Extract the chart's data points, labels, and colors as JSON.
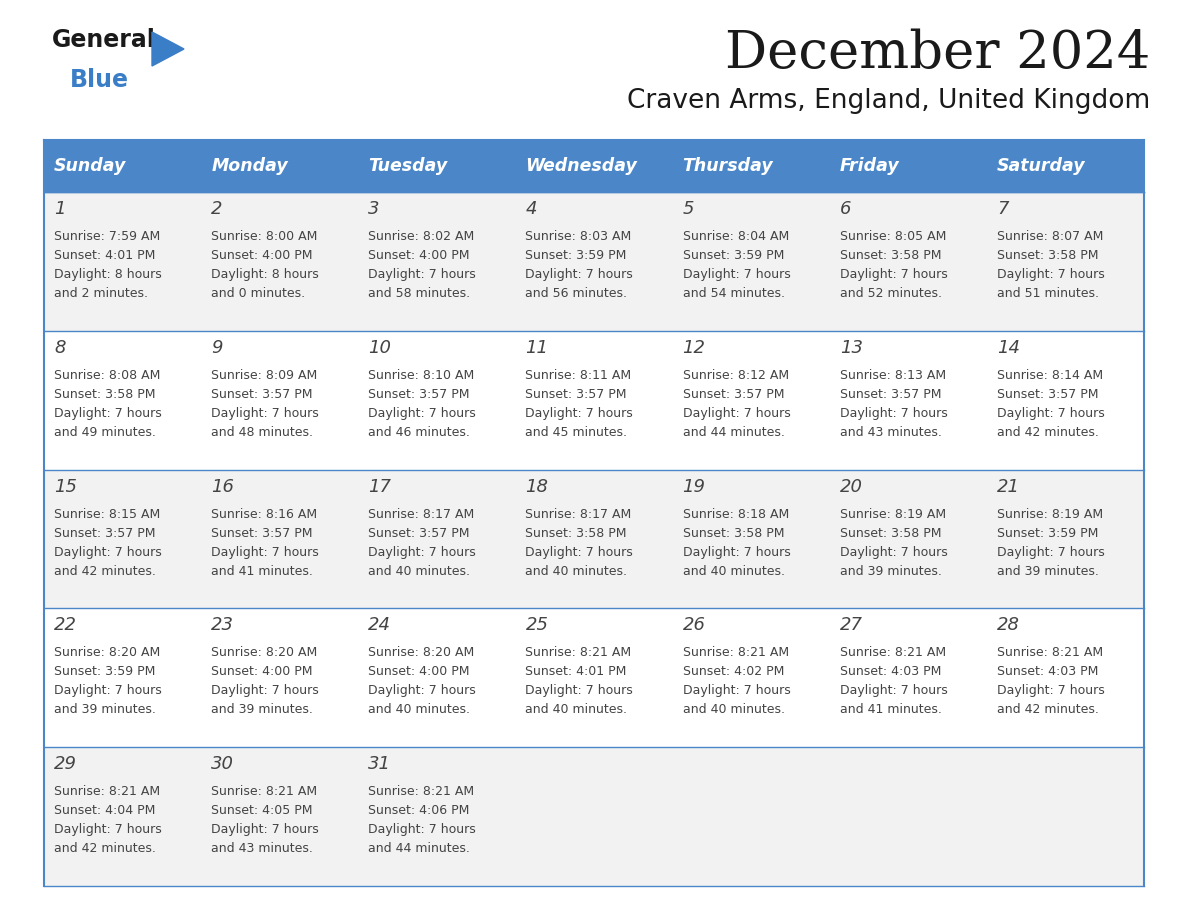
{
  "title": "December 2024",
  "subtitle": "Craven Arms, England, United Kingdom",
  "days_of_week": [
    "Sunday",
    "Monday",
    "Tuesday",
    "Wednesday",
    "Thursday",
    "Friday",
    "Saturday"
  ],
  "header_bg": "#4a86c8",
  "header_text": "#ffffff",
  "row_bg_odd": "#f2f2f2",
  "row_bg_even": "#ffffff",
  "border_color": "#4a86c8",
  "day_num_color": "#444444",
  "cell_text_color": "#444444",
  "title_color": "#1a1a1a",
  "subtitle_color": "#1a1a1a",
  "logo_general_color": "#1a1a1a",
  "logo_blue_color": "#3a7ec8",
  "weeks": [
    [
      {
        "day": 1,
        "sunrise": "7:59 AM",
        "sunset": "4:01 PM",
        "daylight": "8 hours and 2 minutes."
      },
      {
        "day": 2,
        "sunrise": "8:00 AM",
        "sunset": "4:00 PM",
        "daylight": "8 hours and 0 minutes."
      },
      {
        "day": 3,
        "sunrise": "8:02 AM",
        "sunset": "4:00 PM",
        "daylight": "7 hours and 58 minutes."
      },
      {
        "day": 4,
        "sunrise": "8:03 AM",
        "sunset": "3:59 PM",
        "daylight": "7 hours and 56 minutes."
      },
      {
        "day": 5,
        "sunrise": "8:04 AM",
        "sunset": "3:59 PM",
        "daylight": "7 hours and 54 minutes."
      },
      {
        "day": 6,
        "sunrise": "8:05 AM",
        "sunset": "3:58 PM",
        "daylight": "7 hours and 52 minutes."
      },
      {
        "day": 7,
        "sunrise": "8:07 AM",
        "sunset": "3:58 PM",
        "daylight": "7 hours and 51 minutes."
      }
    ],
    [
      {
        "day": 8,
        "sunrise": "8:08 AM",
        "sunset": "3:58 PM",
        "daylight": "7 hours and 49 minutes."
      },
      {
        "day": 9,
        "sunrise": "8:09 AM",
        "sunset": "3:57 PM",
        "daylight": "7 hours and 48 minutes."
      },
      {
        "day": 10,
        "sunrise": "8:10 AM",
        "sunset": "3:57 PM",
        "daylight": "7 hours and 46 minutes."
      },
      {
        "day": 11,
        "sunrise": "8:11 AM",
        "sunset": "3:57 PM",
        "daylight": "7 hours and 45 minutes."
      },
      {
        "day": 12,
        "sunrise": "8:12 AM",
        "sunset": "3:57 PM",
        "daylight": "7 hours and 44 minutes."
      },
      {
        "day": 13,
        "sunrise": "8:13 AM",
        "sunset": "3:57 PM",
        "daylight": "7 hours and 43 minutes."
      },
      {
        "day": 14,
        "sunrise": "8:14 AM",
        "sunset": "3:57 PM",
        "daylight": "7 hours and 42 minutes."
      }
    ],
    [
      {
        "day": 15,
        "sunrise": "8:15 AM",
        "sunset": "3:57 PM",
        "daylight": "7 hours and 42 minutes."
      },
      {
        "day": 16,
        "sunrise": "8:16 AM",
        "sunset": "3:57 PM",
        "daylight": "7 hours and 41 minutes."
      },
      {
        "day": 17,
        "sunrise": "8:17 AM",
        "sunset": "3:57 PM",
        "daylight": "7 hours and 40 minutes."
      },
      {
        "day": 18,
        "sunrise": "8:17 AM",
        "sunset": "3:58 PM",
        "daylight": "7 hours and 40 minutes."
      },
      {
        "day": 19,
        "sunrise": "8:18 AM",
        "sunset": "3:58 PM",
        "daylight": "7 hours and 40 minutes."
      },
      {
        "day": 20,
        "sunrise": "8:19 AM",
        "sunset": "3:58 PM",
        "daylight": "7 hours and 39 minutes."
      },
      {
        "day": 21,
        "sunrise": "8:19 AM",
        "sunset": "3:59 PM",
        "daylight": "7 hours and 39 minutes."
      }
    ],
    [
      {
        "day": 22,
        "sunrise": "8:20 AM",
        "sunset": "3:59 PM",
        "daylight": "7 hours and 39 minutes."
      },
      {
        "day": 23,
        "sunrise": "8:20 AM",
        "sunset": "4:00 PM",
        "daylight": "7 hours and 39 minutes."
      },
      {
        "day": 24,
        "sunrise": "8:20 AM",
        "sunset": "4:00 PM",
        "daylight": "7 hours and 40 minutes."
      },
      {
        "day": 25,
        "sunrise": "8:21 AM",
        "sunset": "4:01 PM",
        "daylight": "7 hours and 40 minutes."
      },
      {
        "day": 26,
        "sunrise": "8:21 AM",
        "sunset": "4:02 PM",
        "daylight": "7 hours and 40 minutes."
      },
      {
        "day": 27,
        "sunrise": "8:21 AM",
        "sunset": "4:03 PM",
        "daylight": "7 hours and 41 minutes."
      },
      {
        "day": 28,
        "sunrise": "8:21 AM",
        "sunset": "4:03 PM",
        "daylight": "7 hours and 42 minutes."
      }
    ],
    [
      {
        "day": 29,
        "sunrise": "8:21 AM",
        "sunset": "4:04 PM",
        "daylight": "7 hours and 42 minutes."
      },
      {
        "day": 30,
        "sunrise": "8:21 AM",
        "sunset": "4:05 PM",
        "daylight": "7 hours and 43 minutes."
      },
      {
        "day": 31,
        "sunrise": "8:21 AM",
        "sunset": "4:06 PM",
        "daylight": "7 hours and 44 minutes."
      },
      null,
      null,
      null,
      null
    ]
  ],
  "fig_width": 11.88,
  "fig_height": 9.18,
  "dpi": 100
}
